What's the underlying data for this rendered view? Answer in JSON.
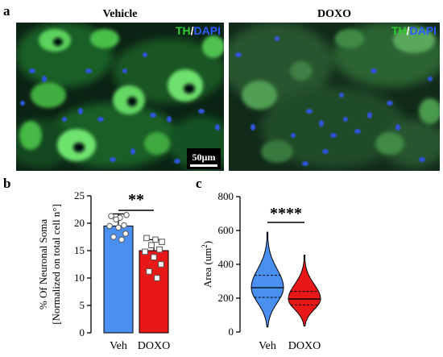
{
  "panels": {
    "a": {
      "letter": "a",
      "left_title": "Vehicle",
      "right_title": "DOXO",
      "stain_th": "TH",
      "stain_sep": "/",
      "stain_dapi": "DAPI",
      "scalebar_label": "50µm",
      "colors": {
        "th": "#2ecc2e",
        "dapi": "#2a5cff"
      }
    },
    "b": {
      "letter": "b"
    },
    "c": {
      "letter": "c"
    }
  },
  "chart_data": [
    {
      "panel": "b",
      "type": "bar",
      "categories": [
        "Veh",
        "DOXO"
      ],
      "values": [
        19.5,
        15.0
      ],
      "errors": [
        2.2,
        2.0
      ],
      "colors": [
        "#4a90f0",
        "#e81818"
      ],
      "ylabel_line1": "% Of Neuronal  Soma",
      "ylabel_line2": "[Normalized on total cell n°]",
      "ylim": [
        0,
        25
      ],
      "yticks": [
        "0",
        "5",
        "10",
        "15",
        "20",
        "25"
      ],
      "significance": "**",
      "points": [
        {
          "series": "Veh",
          "marker": "circle",
          "values": [
            21.3,
            21.0,
            21.5,
            20.7,
            19.6,
            19.5,
            19.2,
            18.1,
            17.5,
            17.0
          ]
        },
        {
          "series": "DOXO",
          "marker": "square",
          "values": [
            17.3,
            17.0,
            16.6,
            16.0,
            15.2,
            14.8,
            13.8,
            12.5,
            11.2,
            10.0
          ]
        }
      ]
    },
    {
      "panel": "c",
      "type": "violin",
      "categories": [
        "Veh",
        "DOXO"
      ],
      "colors": [
        "#4a90f0",
        "#e81818"
      ],
      "ylabel": "Area (um",
      "ylabel_sup": "2",
      "ylabel_end": ")",
      "ylim": [
        0,
        800
      ],
      "yticks": [
        "0",
        "200",
        "400",
        "600",
        "800"
      ],
      "significance": "****",
      "violins": [
        {
          "name": "Veh",
          "min": 30,
          "max": 590,
          "q1": 205,
          "median": 262,
          "q3": 335
        },
        {
          "name": "DOXO",
          "min": 35,
          "max": 455,
          "q1": 160,
          "median": 195,
          "q3": 240
        }
      ]
    }
  ]
}
